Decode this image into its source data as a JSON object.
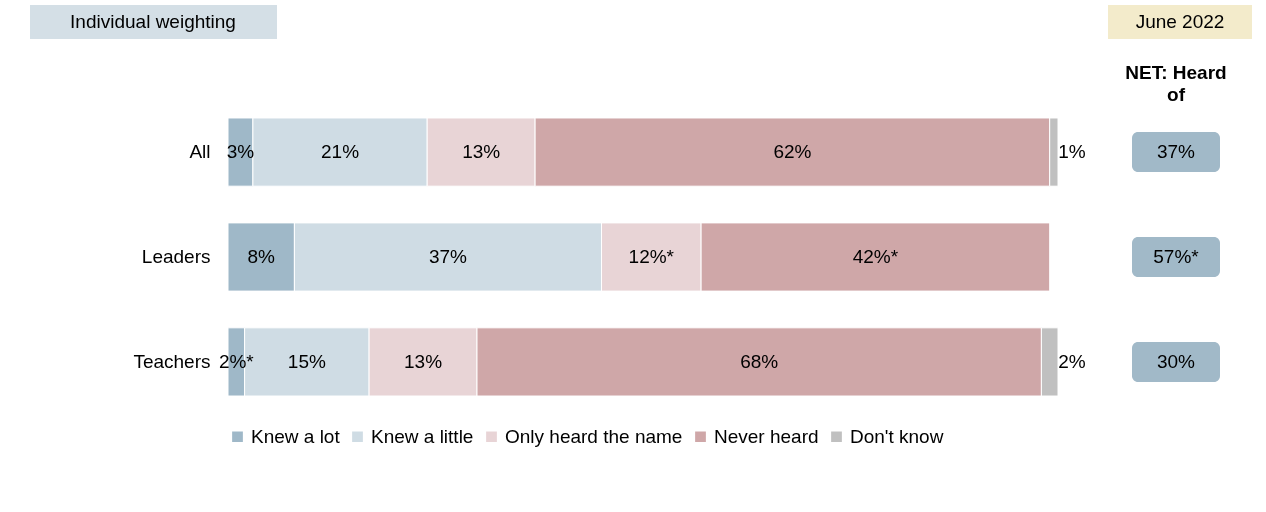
{
  "chart_data": {
    "type": "bar",
    "orientation": "horizontal",
    "stacked": true,
    "categories": [
      "All",
      "Leaders",
      "Teachers"
    ],
    "series": [
      {
        "name": "Knew a lot",
        "color": "#9fb8c8",
        "values": [
          3,
          8,
          2
        ],
        "value_labels": [
          "3%",
          "8%",
          "2%*"
        ]
      },
      {
        "name": "Knew a little",
        "color": "#cfdce4",
        "values": [
          21,
          37,
          15
        ],
        "value_labels": [
          "21%",
          "37%",
          "15%"
        ]
      },
      {
        "name": "Only heard the name",
        "color": "#e8d4d6",
        "values": [
          13,
          12,
          13
        ],
        "value_labels": [
          "13%",
          "12%*",
          "13%"
        ]
      },
      {
        "name": "Never heard",
        "color": "#cfa7a8",
        "values": [
          62,
          42,
          68
        ],
        "value_labels": [
          "62%",
          "42%*",
          "68%"
        ]
      },
      {
        "name": "Don't know",
        "color": "#c0c0c0",
        "values": [
          1,
          null,
          2
        ],
        "value_labels": [
          "1%",
          null,
          "2%"
        ]
      }
    ],
    "xlim": [
      0,
      100
    ],
    "tick_labels": "y",
    "legend": "bottom",
    "annotations": [
      "Individual weighting",
      "June 2022",
      "NET: Heard of",
      "37%",
      "57%*",
      "30%"
    ]
  }
}
